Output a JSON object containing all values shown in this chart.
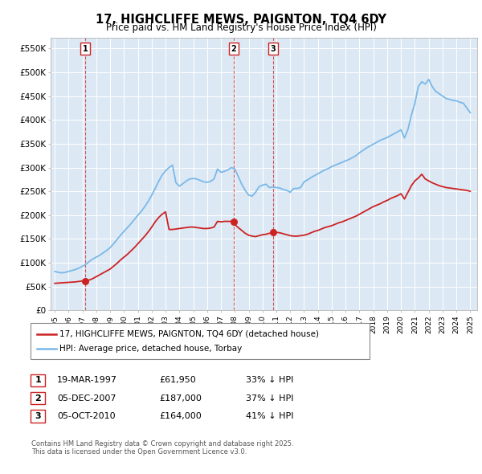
{
  "title": "17, HIGHCLIFFE MEWS, PAIGNTON, TQ4 6DY",
  "subtitle": "Price paid vs. HM Land Registry's House Price Index (HPI)",
  "background_color": "#ffffff",
  "plot_bg_color": "#dce9f5",
  "hpi_color": "#7ab8e8",
  "price_color": "#cc2222",
  "ylabel_values": [
    0,
    50000,
    100000,
    150000,
    200000,
    250000,
    300000,
    350000,
    400000,
    450000,
    500000,
    550000
  ],
  "ylabel_labels": [
    "£0",
    "£50K",
    "£100K",
    "£150K",
    "£200K",
    "£250K",
    "£300K",
    "£350K",
    "£400K",
    "£450K",
    "£500K",
    "£550K"
  ],
  "xmin": 1994.7,
  "xmax": 2025.5,
  "ymin": 0,
  "ymax": 572000,
  "transactions": [
    {
      "num": 1,
      "date": "19-MAR-1997",
      "year": 1997.21,
      "price": 61950
    },
    {
      "num": 2,
      "date": "05-DEC-2007",
      "year": 2007.92,
      "price": 187000
    },
    {
      "num": 3,
      "date": "05-OCT-2010",
      "year": 2010.76,
      "price": 164000
    }
  ],
  "legend_line1": "17, HIGHCLIFFE MEWS, PAIGNTON, TQ4 6DY (detached house)",
  "legend_line2": "HPI: Average price, detached house, Torbay",
  "table_rows": [
    [
      "1",
      "19-MAR-1997",
      "£61,950",
      "33% ↓ HPI"
    ],
    [
      "2",
      "05-DEC-2007",
      "£187,000",
      "37% ↓ HPI"
    ],
    [
      "3",
      "05-OCT-2010",
      "£164,000",
      "41% ↓ HPI"
    ]
  ],
  "footnote": "Contains HM Land Registry data © Crown copyright and database right 2025.\nThis data is licensed under the Open Government Licence v3.0.",
  "hpi_data_x": [
    1995.0,
    1995.25,
    1995.5,
    1995.75,
    1996.0,
    1996.25,
    1996.5,
    1996.75,
    1997.0,
    1997.25,
    1997.5,
    1997.75,
    1998.0,
    1998.25,
    1998.5,
    1998.75,
    1999.0,
    1999.25,
    1999.5,
    1999.75,
    2000.0,
    2000.25,
    2000.5,
    2000.75,
    2001.0,
    2001.25,
    2001.5,
    2001.75,
    2002.0,
    2002.25,
    2002.5,
    2002.75,
    2003.0,
    2003.25,
    2003.5,
    2003.75,
    2004.0,
    2004.25,
    2004.5,
    2004.75,
    2005.0,
    2005.25,
    2005.5,
    2005.75,
    2006.0,
    2006.25,
    2006.5,
    2006.75,
    2007.0,
    2007.25,
    2007.5,
    2007.75,
    2008.0,
    2008.25,
    2008.5,
    2008.75,
    2009.0,
    2009.25,
    2009.5,
    2009.75,
    2010.0,
    2010.25,
    2010.5,
    2010.75,
    2011.0,
    2011.25,
    2011.5,
    2011.75,
    2012.0,
    2012.25,
    2012.5,
    2012.75,
    2013.0,
    2013.25,
    2013.5,
    2013.75,
    2014.0,
    2014.25,
    2014.5,
    2014.75,
    2015.0,
    2015.25,
    2015.5,
    2015.75,
    2016.0,
    2016.25,
    2016.5,
    2016.75,
    2017.0,
    2017.25,
    2017.5,
    2017.75,
    2018.0,
    2018.25,
    2018.5,
    2018.75,
    2019.0,
    2019.25,
    2019.5,
    2019.75,
    2020.0,
    2020.25,
    2020.5,
    2020.75,
    2021.0,
    2021.25,
    2021.5,
    2021.75,
    2022.0,
    2022.25,
    2022.5,
    2022.75,
    2023.0,
    2023.25,
    2023.5,
    2023.75,
    2024.0,
    2024.25,
    2024.5,
    2024.75,
    2025.0
  ],
  "hpi_data_y": [
    82000,
    80000,
    79000,
    80000,
    82000,
    84000,
    86000,
    89000,
    93000,
    97000,
    103000,
    108000,
    112000,
    116000,
    121000,
    126000,
    132000,
    140000,
    149000,
    158000,
    166000,
    174000,
    182000,
    191000,
    200000,
    208000,
    218000,
    229000,
    242000,
    256000,
    271000,
    284000,
    293000,
    300000,
    305000,
    268000,
    261000,
    266000,
    272000,
    276000,
    277000,
    276000,
    273000,
    270000,
    269000,
    271000,
    276000,
    297000,
    290000,
    292000,
    295000,
    300000,
    297000,
    281000,
    265000,
    252000,
    242000,
    240000,
    248000,
    260000,
    263000,
    265000,
    258000,
    259000,
    258000,
    257000,
    254000,
    252000,
    248000,
    256000,
    256000,
    258000,
    270000,
    274000,
    279000,
    283000,
    287000,
    291000,
    295000,
    298000,
    302000,
    305000,
    308000,
    311000,
    314000,
    317000,
    321000,
    325000,
    331000,
    336000,
    341000,
    345000,
    349000,
    353000,
    357000,
    360000,
    363000,
    367000,
    371000,
    375000,
    379000,
    362000,
    380000,
    410000,
    435000,
    470000,
    480000,
    475000,
    485000,
    470000,
    460000,
    455000,
    450000,
    445000,
    443000,
    441000,
    440000,
    437000,
    435000,
    425000,
    415000
  ],
  "price_data_x": [
    1995.0,
    1995.25,
    1995.5,
    1995.75,
    1996.0,
    1996.25,
    1996.5,
    1996.75,
    1997.0,
    1997.25,
    1997.5,
    1997.75,
    1998.0,
    1998.25,
    1998.5,
    1998.75,
    1999.0,
    1999.25,
    1999.5,
    1999.75,
    2000.0,
    2000.25,
    2000.5,
    2000.75,
    2001.0,
    2001.25,
    2001.5,
    2001.75,
    2002.0,
    2002.25,
    2002.5,
    2002.75,
    2003.0,
    2003.25,
    2003.5,
    2003.75,
    2004.0,
    2004.25,
    2004.5,
    2004.75,
    2005.0,
    2005.25,
    2005.5,
    2005.75,
    2006.0,
    2006.25,
    2006.5,
    2006.75,
    2007.0,
    2007.25,
    2007.5,
    2007.75,
    2008.0,
    2008.25,
    2008.5,
    2008.75,
    2009.0,
    2009.25,
    2009.5,
    2009.75,
    2010.0,
    2010.25,
    2010.5,
    2010.75,
    2011.0,
    2011.25,
    2011.5,
    2011.75,
    2012.0,
    2012.25,
    2012.5,
    2012.75,
    2013.0,
    2013.25,
    2013.5,
    2013.75,
    2014.0,
    2014.25,
    2014.5,
    2014.75,
    2015.0,
    2015.25,
    2015.5,
    2015.75,
    2016.0,
    2016.25,
    2016.5,
    2016.75,
    2017.0,
    2017.25,
    2017.5,
    2017.75,
    2018.0,
    2018.25,
    2018.5,
    2018.75,
    2019.0,
    2019.25,
    2019.5,
    2019.75,
    2020.0,
    2020.25,
    2020.5,
    2020.75,
    2021.0,
    2021.25,
    2021.5,
    2021.75,
    2022.0,
    2022.25,
    2022.5,
    2022.75,
    2023.0,
    2023.25,
    2023.5,
    2023.75,
    2024.0,
    2024.25,
    2024.5,
    2024.75,
    2025.0
  ],
  "price_data_y": [
    57000,
    57500,
    58000,
    58500,
    59000,
    59500,
    60000,
    61000,
    62000,
    61950,
    64000,
    67000,
    71000,
    75000,
    79000,
    83000,
    87000,
    93000,
    99000,
    106000,
    112000,
    118000,
    125000,
    132000,
    140000,
    148000,
    156000,
    165000,
    175000,
    186000,
    195000,
    202000,
    207000,
    170000,
    170000,
    171000,
    172000,
    173000,
    174000,
    175000,
    175000,
    174000,
    173000,
    172000,
    172000,
    173000,
    175000,
    187000,
    186000,
    187000,
    187000,
    187000,
    180000,
    174000,
    168000,
    162000,
    158000,
    156000,
    155000,
    157000,
    159000,
    160000,
    162000,
    164000,
    164000,
    163000,
    161000,
    159000,
    157000,
    156000,
    156000,
    157000,
    158000,
    160000,
    163000,
    166000,
    168000,
    171000,
    174000,
    176000,
    178000,
    181000,
    184000,
    186000,
    189000,
    192000,
    195000,
    198000,
    202000,
    206000,
    210000,
    214000,
    218000,
    221000,
    224000,
    228000,
    231000,
    235000,
    238000,
    241000,
    245000,
    234000,
    248000,
    262000,
    272000,
    278000,
    286000,
    276000,
    272000,
    268000,
    265000,
    262000,
    260000,
    258000,
    257000,
    256000,
    255000,
    254000,
    253000,
    252000,
    250000
  ]
}
